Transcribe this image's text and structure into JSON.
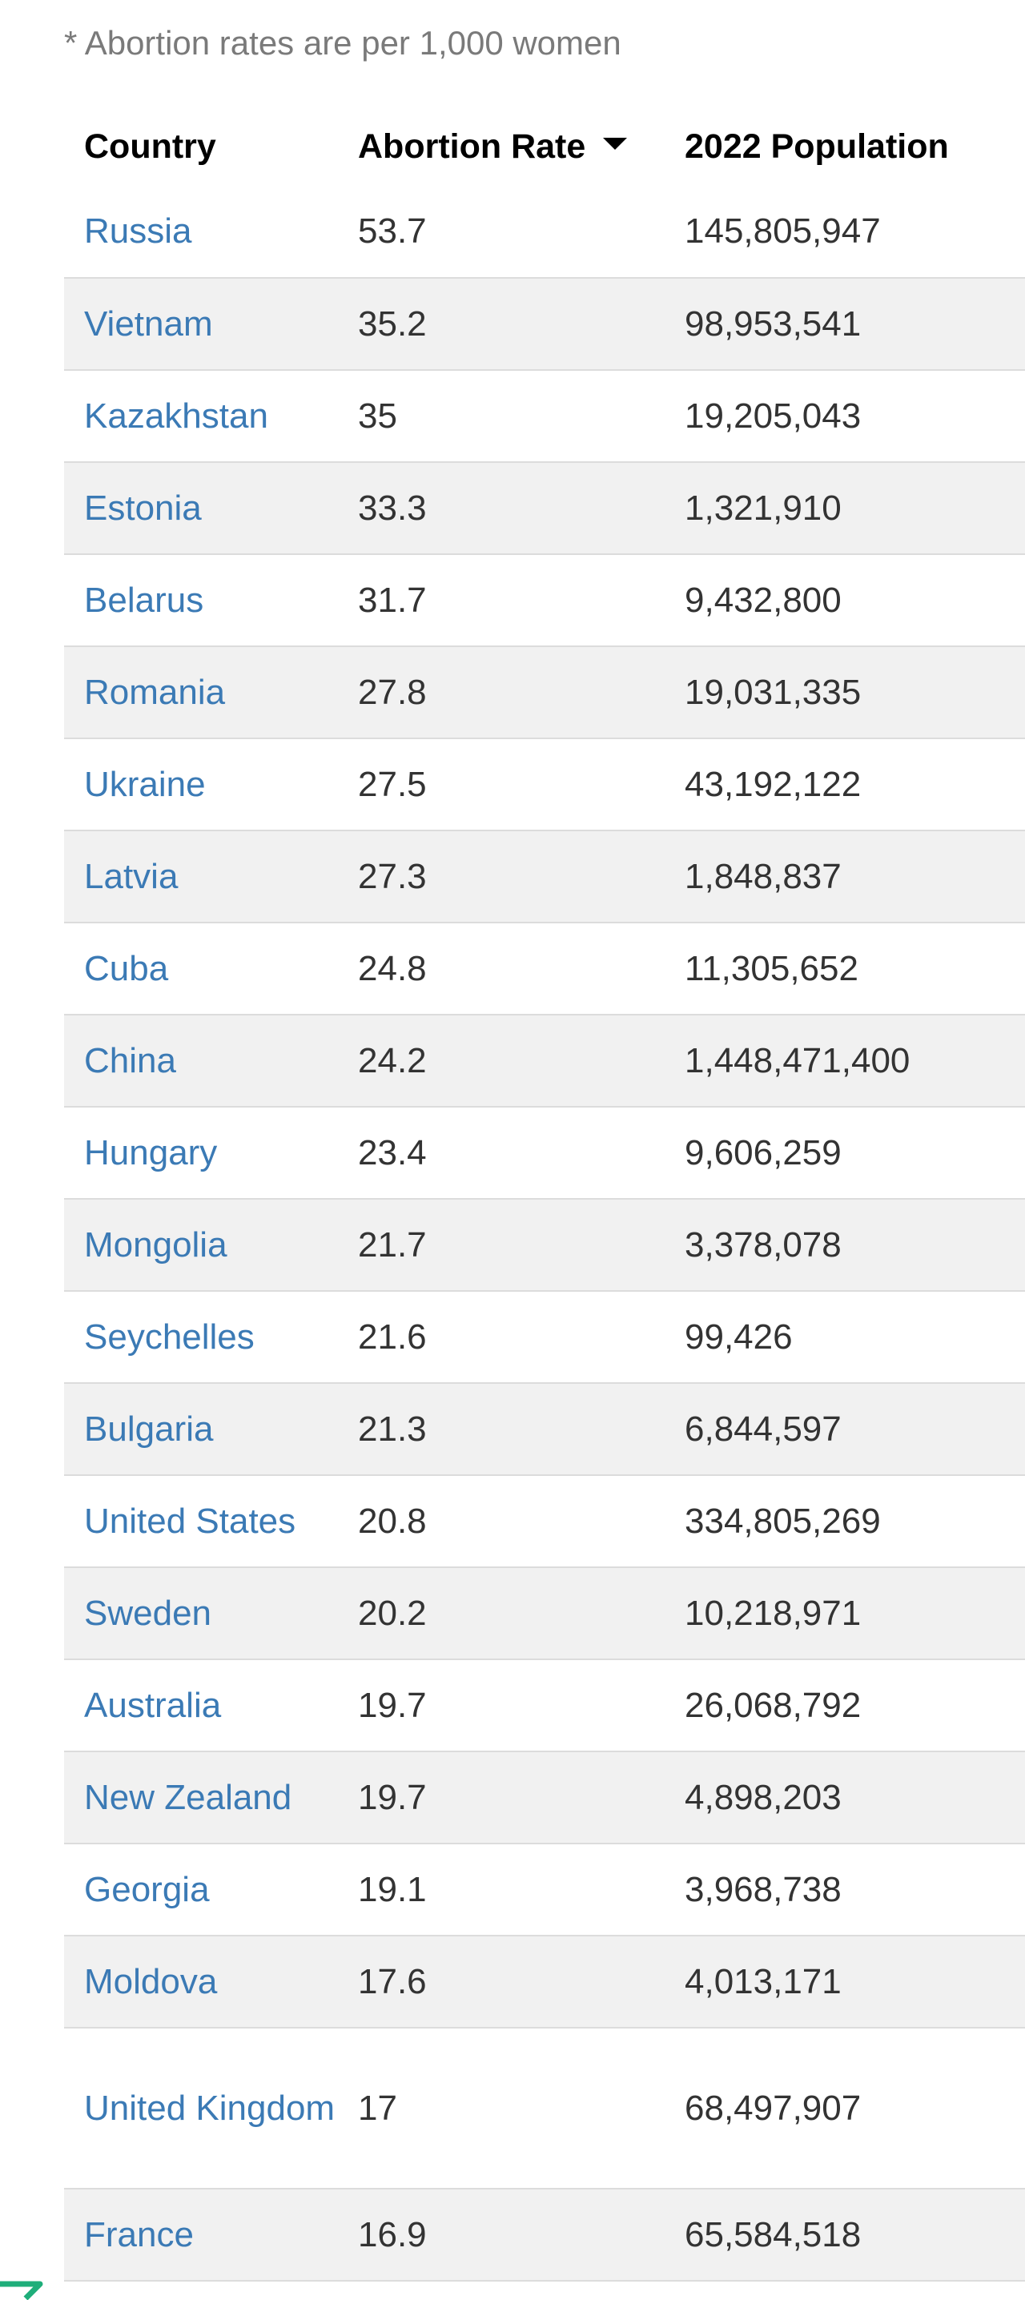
{
  "note": "* Abortion rates are per 1,000 women",
  "table": {
    "headers": [
      "Country",
      "Abortion Rate",
      "2022 Population"
    ],
    "sort_icon": "sort-desc-icon",
    "rows": [
      [
        "Russia",
        "53.7",
        "145,805,947"
      ],
      [
        "Vietnam",
        "35.2",
        "98,953,541"
      ],
      [
        "Kazakhstan",
        "35",
        "19,205,043"
      ],
      [
        "Estonia",
        "33.3",
        "1,321,910"
      ],
      [
        "Belarus",
        "31.7",
        "9,432,800"
      ],
      [
        "Romania",
        "27.8",
        "19,031,335"
      ],
      [
        "Ukraine",
        "27.5",
        "43,192,122"
      ],
      [
        "Latvia",
        "27.3",
        "1,848,837"
      ],
      [
        "Cuba",
        "24.8",
        "11,305,652"
      ],
      [
        "China",
        "24.2",
        "1,448,471,400"
      ],
      [
        "Hungary",
        "23.4",
        "9,606,259"
      ],
      [
        "Mongolia",
        "21.7",
        "3,378,078"
      ],
      [
        "Seychelles",
        "21.6",
        "99,426"
      ],
      [
        "Bulgaria",
        "21.3",
        "6,844,597"
      ],
      [
        "United States",
        "20.8",
        "334,805,269"
      ],
      [
        "Sweden",
        "20.2",
        "10,218,971"
      ],
      [
        "Australia",
        "19.7",
        "26,068,792"
      ],
      [
        "New Zealand",
        "19.7",
        "4,898,203"
      ],
      [
        "Georgia",
        "19.1",
        "3,968,738"
      ],
      [
        "Moldova",
        "17.6",
        "4,013,171"
      ],
      [
        "United Kingdom",
        "17",
        "68,497,907"
      ],
      [
        "France",
        "16.9",
        "65,584,518"
      ]
    ]
  },
  "colors": {
    "link": "#3b7ab5",
    "stripe": "#f1f1f1",
    "note_text": "#7a7a7a",
    "logo": "#1fae7a"
  },
  "corner_logo_icon": "green-logo-icon"
}
